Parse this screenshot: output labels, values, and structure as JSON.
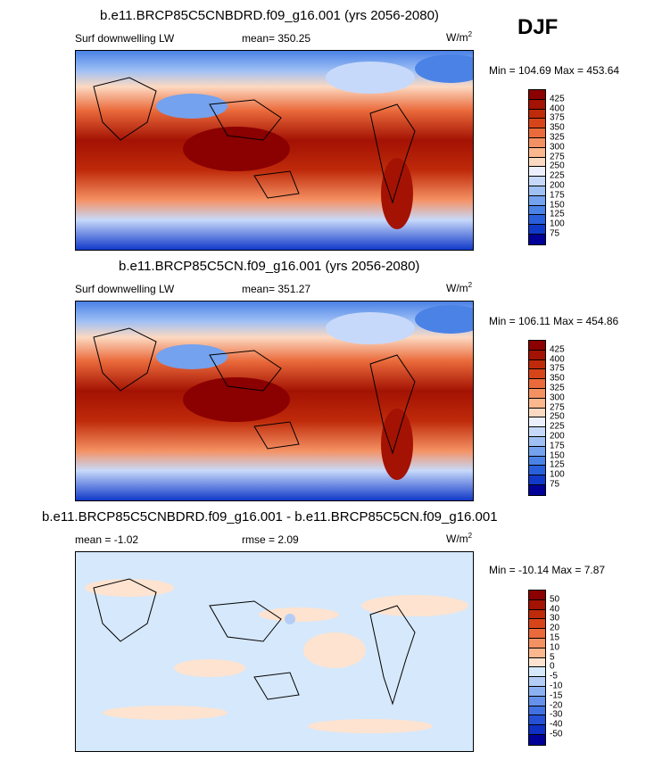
{
  "season": "DJF",
  "units_main": "W/m",
  "units_sup": "2",
  "panels": [
    {
      "title": "b.e11.BRCP85C5CNBDRD.f09_g16.001 (yrs 2056-2080)",
      "left_label": "Surf downwelling LW",
      "center_label": "mean= 350.25",
      "minmax": "Min = 104.69 Max = 453.64",
      "colorbar_labels": [
        "425",
        "400",
        "375",
        "350",
        "325",
        "300",
        "275",
        "250",
        "225",
        "200",
        "175",
        "150",
        "125",
        "100",
        "75"
      ],
      "colorbar_colors": [
        "#8b0000",
        "#a31203",
        "#bf2a0a",
        "#d8441a",
        "#ea6a3b",
        "#f49163",
        "#fbb78e",
        "#fcd9c1",
        "#ecf0fc",
        "#c7d9fa",
        "#9fc0f5",
        "#74a2ee",
        "#4b82e6",
        "#2a5fdc",
        "#1139c9",
        "#000099"
      ]
    },
    {
      "title": "b.e11.BRCP85C5CN.f09_g16.001 (yrs 2056-2080)",
      "left_label": "Surf downwelling LW",
      "center_label": "mean= 351.27",
      "minmax": "Min = 106.11 Max = 454.86",
      "colorbar_labels": [
        "425",
        "400",
        "375",
        "350",
        "325",
        "300",
        "275",
        "250",
        "225",
        "200",
        "175",
        "150",
        "125",
        "100",
        "75"
      ],
      "colorbar_colors": [
        "#8b0000",
        "#a31203",
        "#bf2a0a",
        "#d8441a",
        "#ea6a3b",
        "#f49163",
        "#fbb78e",
        "#fcd9c1",
        "#ecf0fc",
        "#c7d9fa",
        "#9fc0f5",
        "#74a2ee",
        "#4b82e6",
        "#2a5fdc",
        "#1139c9",
        "#000099"
      ]
    },
    {
      "title": "b.e11.BRCP85C5CNBDRD.f09_g16.001 - b.e11.BRCP85C5CN.f09_g16.001",
      "left_label": "mean =  -1.02",
      "center_label": "rmse =   2.09",
      "minmax": "Min = -10.14 Max =   7.87",
      "colorbar_labels": [
        "50",
        "40",
        "30",
        "20",
        "15",
        "10",
        "5",
        "0",
        "-5",
        "-10",
        "-15",
        "-20",
        "-30",
        "-40",
        "-50"
      ],
      "colorbar_colors": [
        "#8b0000",
        "#a31203",
        "#bf2a0a",
        "#d8441a",
        "#ea6a3b",
        "#f49163",
        "#fbb78e",
        "#fde3d0",
        "#d6e8fb",
        "#b3cdf7",
        "#8cb1f2",
        "#6591eb",
        "#4170e2",
        "#2550d6",
        "#0f30c4",
        "#000099"
      ]
    }
  ]
}
